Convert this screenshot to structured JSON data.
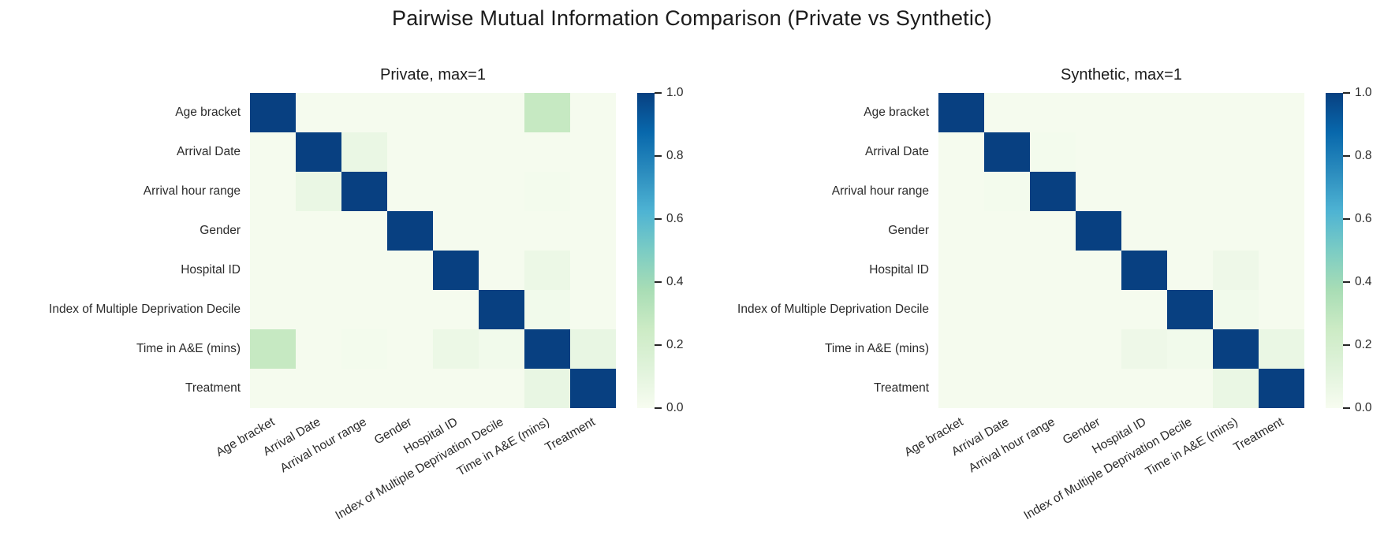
{
  "chart_data": {
    "type": "heatmap",
    "title": "Pairwise Mutual Information Comparison (Private vs Synthetic)",
    "categories": [
      "Age bracket",
      "Arrival Date",
      "Arrival hour range",
      "Gender",
      "Hospital ID",
      "Index of Multiple Deprivation Decile",
      "Time in A&E (mins)",
      "Treatment"
    ],
    "panels": [
      {
        "title": "Private, max=1",
        "matrix": [
          [
            1.0,
            0.01,
            0.01,
            0.01,
            0.01,
            0.01,
            0.27,
            0.01
          ],
          [
            0.01,
            1.0,
            0.07,
            0.01,
            0.01,
            0.01,
            0.01,
            0.01
          ],
          [
            0.01,
            0.07,
            1.0,
            0.01,
            0.01,
            0.01,
            0.02,
            0.01
          ],
          [
            0.01,
            0.01,
            0.01,
            1.0,
            0.01,
            0.01,
            0.01,
            0.01
          ],
          [
            0.01,
            0.01,
            0.01,
            0.01,
            1.0,
            0.01,
            0.06,
            0.01
          ],
          [
            0.01,
            0.01,
            0.01,
            0.01,
            0.01,
            1.0,
            0.03,
            0.01
          ],
          [
            0.27,
            0.01,
            0.02,
            0.01,
            0.06,
            0.03,
            1.0,
            0.08
          ],
          [
            0.01,
            0.01,
            0.01,
            0.01,
            0.01,
            0.01,
            0.08,
            1.0
          ]
        ]
      },
      {
        "title": "Synthetic, max=1",
        "matrix": [
          [
            1.0,
            0.01,
            0.01,
            0.01,
            0.01,
            0.01,
            0.01,
            0.01
          ],
          [
            0.01,
            1.0,
            0.02,
            0.01,
            0.01,
            0.01,
            0.01,
            0.01
          ],
          [
            0.01,
            0.02,
            1.0,
            0.01,
            0.01,
            0.01,
            0.01,
            0.01
          ],
          [
            0.01,
            0.01,
            0.01,
            1.0,
            0.01,
            0.01,
            0.01,
            0.01
          ],
          [
            0.01,
            0.01,
            0.01,
            0.01,
            1.0,
            0.01,
            0.05,
            0.01
          ],
          [
            0.01,
            0.01,
            0.01,
            0.01,
            0.01,
            1.0,
            0.03,
            0.01
          ],
          [
            0.01,
            0.01,
            0.01,
            0.01,
            0.05,
            0.03,
            1.0,
            0.07
          ],
          [
            0.01,
            0.01,
            0.01,
            0.01,
            0.01,
            0.01,
            0.07,
            1.0
          ]
        ]
      }
    ],
    "colorbar": {
      "min": 0.0,
      "max": 1.0,
      "tick_labels": [
        "1.0",
        "0.8",
        "0.6",
        "0.4",
        "0.2",
        "0.0"
      ]
    },
    "colormap": {
      "name": "GnBu",
      "anchors": [
        [
          0.0,
          "#f7fcf0"
        ],
        [
          0.125,
          "#e0f3db"
        ],
        [
          0.25,
          "#ccebc5"
        ],
        [
          0.375,
          "#a8ddb5"
        ],
        [
          0.5,
          "#7bccc4"
        ],
        [
          0.625,
          "#4eb3d3"
        ],
        [
          0.75,
          "#2b8cbe"
        ],
        [
          0.875,
          "#0868ac"
        ],
        [
          1.0,
          "#084081"
        ]
      ]
    },
    "layout": {
      "grid": "off",
      "legend": "none",
      "x_tick_rotation_deg": 30
    }
  }
}
